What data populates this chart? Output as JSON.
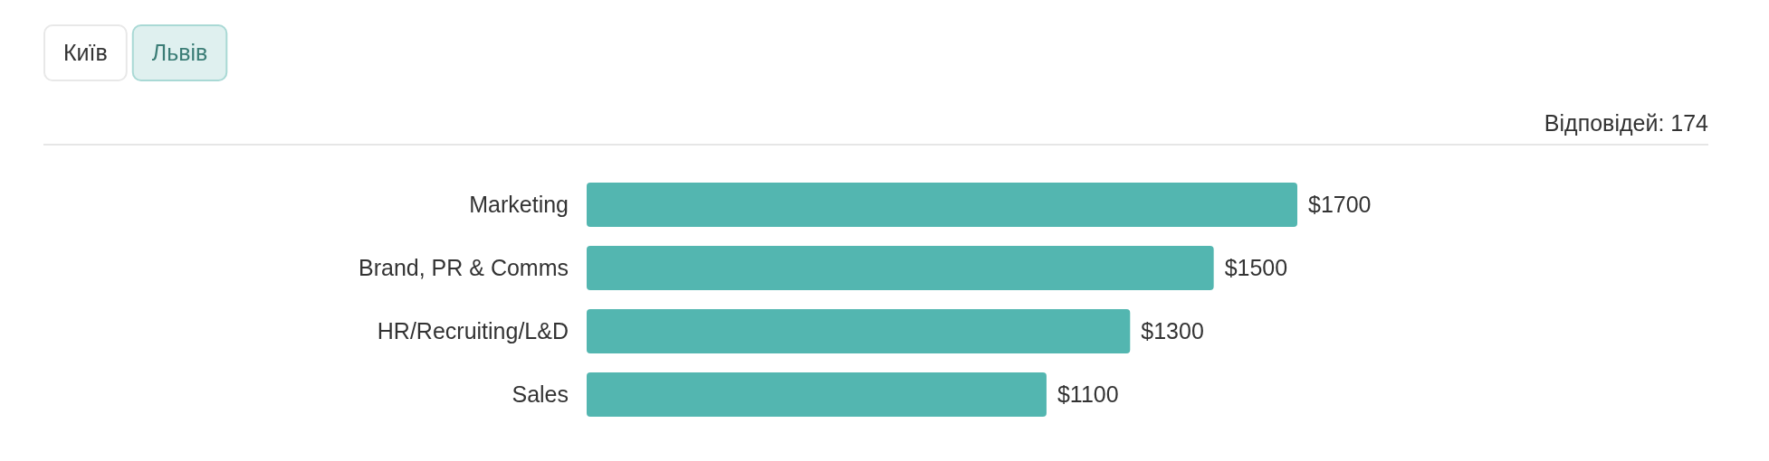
{
  "chart_data": {
    "type": "bar",
    "orientation": "horizontal",
    "categories": [
      "Marketing",
      "Brand, PR & Comms",
      "HR/Recruiting/L&D",
      "Sales"
    ],
    "values": [
      1700,
      1500,
      1300,
      1100
    ],
    "value_labels": [
      "$1700",
      "$1500",
      "$1300",
      "$1100"
    ],
    "color": "#53b6b0",
    "annotations": [
      "Київ",
      "Львів",
      "Відповідей: 174"
    ]
  }
}
